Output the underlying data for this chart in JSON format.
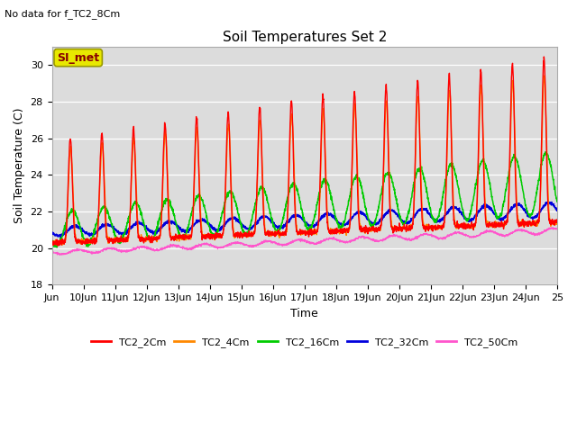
{
  "title": "Soil Temperatures Set 2",
  "subtitle": "No data for f_TC2_8Cm",
  "xlabel": "Time",
  "ylabel": "Soil Temperature (C)",
  "ylim": [
    18,
    31
  ],
  "yticks": [
    18,
    20,
    22,
    24,
    26,
    28,
    30
  ],
  "bg_color": "#dcdcdc",
  "fig_color": "#ffffff",
  "annotation_box": "SI_met",
  "annotation_box_color": "#e8e800",
  "annotation_text_color": "#880000",
  "series_colors": {
    "TC2_2Cm": "#ff0000",
    "TC2_4Cm": "#ff8800",
    "TC2_16Cm": "#00cc00",
    "TC2_32Cm": "#0000dd",
    "TC2_50Cm": "#ff55cc"
  },
  "x_tick_labels": [
    "Jun",
    "10Jun",
    "11Jun",
    "12Jun",
    "13Jun",
    "14Jun",
    "15Jun",
    "16Jun",
    "17Jun",
    "18Jun",
    "19Jun",
    "20Jun",
    "21Jun",
    "22Jun",
    "23Jun",
    "24Jun",
    "25"
  ]
}
